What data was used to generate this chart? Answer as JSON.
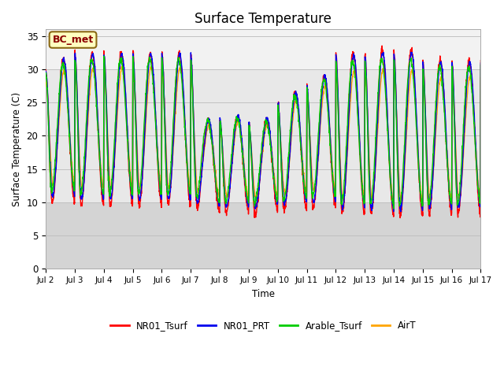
{
  "title": "Surface Temperature",
  "ylabel": "Surface Temperature (C)",
  "xlabel": "Time",
  "ylim": [
    0,
    36
  ],
  "n_days": 15,
  "annotation_text": "BC_met",
  "annotation_color": "#8B0000",
  "annotation_bg": "#FFFFC0",
  "annotation_border": "#8B6914",
  "background_color": "#FFFFFF",
  "plot_bg_dark": "#D4D4D4",
  "plot_bg_mid": "#E8E8E8",
  "plot_bg_light": "#F2F2F2",
  "hline_color": "#CCCCCC",
  "lines": {
    "NR01_Tsurf": {
      "color": "#FF0000",
      "lw": 1.0
    },
    "NR01_PRT": {
      "color": "#0000EE",
      "lw": 1.0
    },
    "Arable_Tsurf": {
      "color": "#00CC00",
      "lw": 1.0
    },
    "AirT": {
      "color": "#FFA500",
      "lw": 1.0
    }
  },
  "xtick_labels": [
    "Jul 2",
    "Jul 3",
    "Jul 4",
    "Jul 5",
    "Jul 6",
    "Jul 7",
    "Jul 8",
    "Jul 9",
    "Jul 10",
    "Jul 11",
    "Jul 12",
    "Jul 13",
    "Jul 14",
    "Jul 15",
    "Jul 16",
    "Jul 17"
  ],
  "ytick_values": [
    0,
    5,
    10,
    15,
    20,
    25,
    30,
    35
  ],
  "legend_labels": [
    "NR01_Tsurf",
    "NR01_PRT",
    "Arable_Tsurf",
    "AirT"
  ],
  "legend_colors": [
    "#FF0000",
    "#0000EE",
    "#00CC00",
    "#FFA500"
  ],
  "figsize": [
    6.4,
    4.8
  ],
  "dpi": 100
}
